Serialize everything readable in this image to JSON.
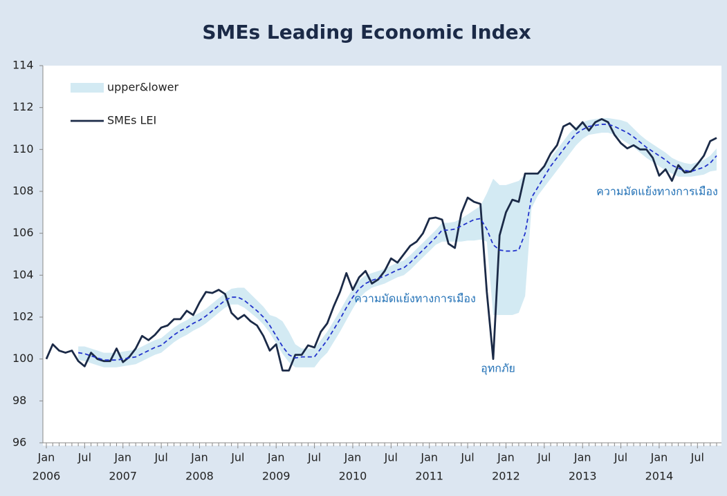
{
  "chart_data": {
    "type": "line",
    "title": "SMEs Leading Economic Index",
    "categories": [
      "Jan",
      null,
      null,
      null,
      null,
      null,
      "Jul",
      null,
      null,
      null,
      null,
      null,
      "Jan",
      null,
      null,
      null,
      null,
      null,
      "Jul",
      null,
      null,
      null,
      null,
      null,
      "Jan",
      null,
      null,
      null,
      null,
      null,
      "Jul",
      null,
      null,
      null,
      null,
      null,
      "Jan",
      null,
      null,
      null,
      null,
      null,
      "Jul",
      null,
      null,
      null,
      null,
      null,
      "Jan",
      null,
      null,
      null,
      null,
      null,
      "Jul",
      null,
      null,
      null,
      null,
      null,
      "Jan",
      null,
      null,
      null,
      null,
      null,
      "Jul",
      null,
      null,
      null,
      null,
      null,
      "Jan",
      null,
      null,
      null,
      null,
      null,
      "Jul",
      null,
      null,
      null,
      null,
      null,
      "Jan",
      null,
      null,
      null,
      null,
      null,
      "Jul",
      null,
      null,
      null,
      null,
      null,
      "Jan",
      null,
      null,
      null,
      null,
      null,
      "Jul",
      null,
      null,
      null
    ],
    "years": [
      "2006",
      "2007",
      "2008",
      "2009",
      "2010",
      "2011",
      "2012",
      "2013",
      "2014"
    ],
    "ylim": [
      96,
      114
    ],
    "yticks": [
      96,
      98,
      100,
      102,
      104,
      106,
      108,
      110,
      112,
      114
    ],
    "grid": false,
    "legend": "upper-left",
    "series": [
      {
        "name": "upper&lower",
        "color": "#d3eaf3",
        "kind": "band",
        "upper": [
          null,
          null,
          null,
          null,
          null,
          100.6,
          100.6,
          100.5,
          100.4,
          100.3,
          100.3,
          100.3,
          100.35,
          100.4,
          100.45,
          100.6,
          100.75,
          100.9,
          101.0,
          101.25,
          101.5,
          101.7,
          101.85,
          102.05,
          102.2,
          102.4,
          102.65,
          102.9,
          103.15,
          103.35,
          103.4,
          103.4,
          103.1,
          102.8,
          102.5,
          102.1,
          102.0,
          101.8,
          101.3,
          100.7,
          100.5,
          100.5,
          100.5,
          100.9,
          101.3,
          101.8,
          102.3,
          102.85,
          103.35,
          103.75,
          104.0,
          104.1,
          104.2,
          104.3,
          104.45,
          104.6,
          104.7,
          104.95,
          105.25,
          105.55,
          105.85,
          106.15,
          106.5,
          106.5,
          106.55,
          106.7,
          106.9,
          107.1,
          107.3,
          107.9,
          108.6,
          108.3,
          108.3,
          108.4,
          108.5,
          108.8,
          108.85,
          108.9,
          109.2,
          109.6,
          110.0,
          110.4,
          110.8,
          111.1,
          111.3,
          111.4,
          111.45,
          111.5,
          111.5,
          111.45,
          111.4,
          111.3,
          111.0,
          110.7,
          110.45,
          110.25,
          110.05,
          109.85,
          109.6,
          109.45,
          109.35,
          109.3,
          109.4,
          109.5,
          109.7,
          110.05
        ],
        "lower": [
          null,
          null,
          null,
          null,
          null,
          99.95,
          99.9,
          99.8,
          99.7,
          99.6,
          99.6,
          99.6,
          99.65,
          99.7,
          99.75,
          99.9,
          100.05,
          100.2,
          100.3,
          100.55,
          100.8,
          101.0,
          101.15,
          101.35,
          101.5,
          101.7,
          101.95,
          102.2,
          102.45,
          102.6,
          102.6,
          102.45,
          102.2,
          101.95,
          101.65,
          101.25,
          100.75,
          100.25,
          99.85,
          99.6,
          99.6,
          99.6,
          99.6,
          100.0,
          100.3,
          100.8,
          101.3,
          101.85,
          102.4,
          102.9,
          103.2,
          103.4,
          103.5,
          103.6,
          103.75,
          103.9,
          104.0,
          104.25,
          104.55,
          104.85,
          105.15,
          105.45,
          105.6,
          105.6,
          105.6,
          105.6,
          105.65,
          105.65,
          105.7,
          105.6,
          102.1,
          102.1,
          102.1,
          102.1,
          102.2,
          103.0,
          107.2,
          107.8,
          108.2,
          108.6,
          109.0,
          109.4,
          109.8,
          110.2,
          110.5,
          110.7,
          110.75,
          110.8,
          110.8,
          110.7,
          110.5,
          110.3,
          110.1,
          109.85,
          109.6,
          109.4,
          109.2,
          109.0,
          108.85,
          108.7,
          108.7,
          108.7,
          108.75,
          108.8,
          108.95,
          109.0
        ]
      },
      {
        "name": "SMEs LEI",
        "color": "#1b2a47",
        "kind": "line",
        "values": [
          100.0,
          100.7,
          100.4,
          100.3,
          100.4,
          99.9,
          99.65,
          100.3,
          100.0,
          99.9,
          99.9,
          100.5,
          99.85,
          100.1,
          100.5,
          101.1,
          100.9,
          101.15,
          101.5,
          101.6,
          101.9,
          101.9,
          102.3,
          102.1,
          102.7,
          103.2,
          103.15,
          103.3,
          103.1,
          102.2,
          101.9,
          102.1,
          101.8,
          101.6,
          101.1,
          100.4,
          100.7,
          99.45,
          99.45,
          100.2,
          100.2,
          100.65,
          100.55,
          101.3,
          101.7,
          102.5,
          103.2,
          104.1,
          103.3,
          103.9,
          104.2,
          103.6,
          103.8,
          104.2,
          104.8,
          104.6,
          105.0,
          105.4,
          105.6,
          106.0,
          106.7,
          106.75,
          106.65,
          105.5,
          105.3,
          106.95,
          107.7,
          107.5,
          107.4,
          103.2,
          100.0,
          105.9,
          107.0,
          107.6,
          107.5,
          108.85,
          108.85,
          108.85,
          109.2,
          109.8,
          110.2,
          111.1,
          111.25,
          110.95,
          111.3,
          110.9,
          111.3,
          111.45,
          111.3,
          110.7,
          110.3,
          110.05,
          110.2,
          110.0,
          110.0,
          109.6,
          108.75,
          109.05,
          108.5,
          109.25,
          108.9,
          108.95,
          109.3,
          109.7,
          110.4,
          110.55
        ]
      },
      {
        "color": "#2233cc",
        "kind": "dashed",
        "values": [
          null,
          null,
          null,
          null,
          null,
          100.3,
          100.25,
          100.15,
          100.05,
          99.95,
          99.95,
          99.95,
          100.0,
          100.05,
          100.1,
          100.25,
          100.4,
          100.55,
          100.65,
          100.9,
          101.15,
          101.35,
          101.5,
          101.7,
          101.85,
          102.05,
          102.3,
          102.55,
          102.8,
          102.95,
          102.95,
          102.8,
          102.55,
          102.3,
          102.0,
          101.6,
          101.1,
          100.6,
          100.2,
          100.05,
          100.1,
          100.1,
          100.1,
          100.5,
          100.9,
          101.4,
          101.9,
          102.45,
          102.95,
          103.35,
          103.6,
          103.75,
          103.85,
          103.95,
          104.1,
          104.25,
          104.35,
          104.6,
          104.9,
          105.2,
          105.5,
          105.8,
          106.15,
          106.15,
          106.2,
          106.35,
          106.5,
          106.65,
          106.7,
          106.2,
          105.45,
          105.2,
          105.15,
          105.15,
          105.2,
          106.0,
          107.7,
          108.2,
          108.7,
          109.2,
          109.6,
          110.0,
          110.4,
          110.75,
          110.95,
          111.1,
          111.15,
          111.2,
          111.2,
          111.1,
          110.95,
          110.8,
          110.6,
          110.35,
          110.1,
          109.9,
          109.7,
          109.5,
          109.25,
          109.1,
          109.0,
          108.95,
          109.05,
          109.15,
          109.35,
          109.7
        ]
      }
    ],
    "annotations": [
      "ความมัดแย้งทางการเมือง",
      "อุทกภัย",
      "ความมัดแย้งทางการเมือง"
    ],
    "annotation_color": "#1f6fb5"
  }
}
